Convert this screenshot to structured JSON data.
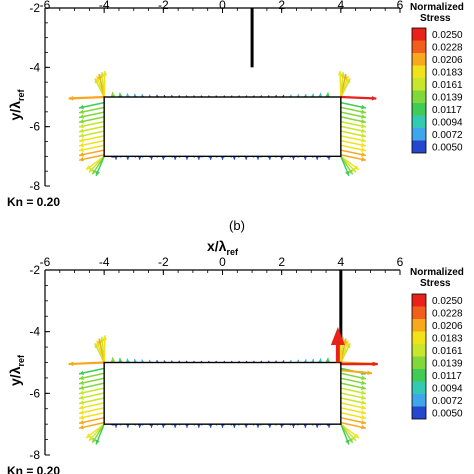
{
  "chart_data": [
    {
      "type": "vector-field",
      "title": "",
      "xlabel": "x/λ_ref",
      "xlabel_main": "x/λ",
      "xlabel_sub": "ref",
      "show_xlabel": false,
      "ylabel": "y/λ_ref",
      "ylabel_main": "y/λ",
      "ylabel_sub": "ref",
      "xlim": [
        -6,
        6
      ],
      "ylim": [
        -8,
        -2
      ],
      "xticks": [
        "-6",
        "-4",
        "-2",
        "0",
        "2",
        "4",
        "6"
      ],
      "yticks": [
        "-2",
        "-4",
        "-6",
        "-8"
      ],
      "annotation": "Kn = 0.20",
      "subfigure_label": "(b)",
      "rectangle": {
        "x": [
          -4,
          4
        ],
        "y": [
          -7,
          -5
        ]
      },
      "probe_line": {
        "x": 1,
        "y": [
          -2,
          -4
        ]
      },
      "big_arrow": null,
      "legend": {
        "title_line1": "Normalized",
        "title_line2": "Stress",
        "levels": [
          "0.0250",
          "0.0228",
          "0.0206",
          "0.0183",
          "0.0161",
          "0.0139",
          "0.0117",
          "0.0094",
          "0.0072",
          "0.0050"
        ],
        "colors": [
          "#e8211a",
          "#f25f1c",
          "#f7a81c",
          "#f2e21a",
          "#c8e62b",
          "#82d83a",
          "#3fcb55",
          "#33c9b2",
          "#3fa6ec",
          "#2447ce"
        ]
      }
    },
    {
      "type": "vector-field",
      "title": "",
      "xlabel": "x/λ_ref",
      "xlabel_main": "x/λ",
      "xlabel_sub": "ref",
      "show_xlabel": true,
      "ylabel": "y/λ_ref",
      "ylabel_main": "y/λ",
      "ylabel_sub": "ref",
      "xlim": [
        -6,
        6
      ],
      "ylim": [
        -8,
        -2
      ],
      "xticks": [
        "-6",
        "-4",
        "-2",
        "0",
        "2",
        "4",
        "6"
      ],
      "yticks": [
        "-2",
        "-4",
        "-6",
        "-8"
      ],
      "annotation": "Kn = 0.20",
      "subfigure_label": "",
      "rectangle": {
        "x": [
          -4,
          4
        ],
        "y": [
          -7,
          -5
        ]
      },
      "probe_line": {
        "x": 4,
        "y": [
          -2,
          -4.3
        ]
      },
      "big_arrow": {
        "x": 3.9,
        "y": -5.0,
        "dx": 0.0,
        "dy": 1.15,
        "color": "#e8211a"
      },
      "legend": {
        "title_line1": "Normalized",
        "title_line2": "Stress",
        "levels": [
          "0.0250",
          "0.0228",
          "0.0206",
          "0.0183",
          "0.0161",
          "0.0139",
          "0.0117",
          "0.0094",
          "0.0072",
          "0.0050"
        ],
        "colors": [
          "#e8211a",
          "#f25f1c",
          "#f7a81c",
          "#f2e21a",
          "#c8e62b",
          "#82d83a",
          "#3fcb55",
          "#33c9b2",
          "#3fa6ec",
          "#2447ce"
        ]
      }
    }
  ]
}
